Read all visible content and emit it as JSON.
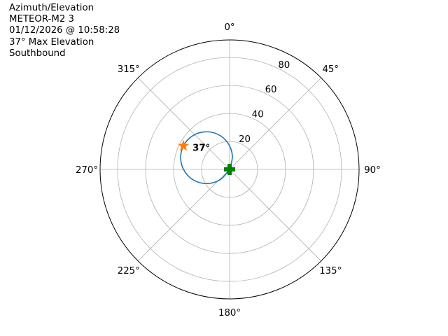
{
  "chart_data": {
    "type": "line",
    "projection": "polar",
    "theta_zero": "north",
    "theta_direction": "clockwise",
    "title_lines": [
      "Azimuth/Elevation",
      "METEOR-M2 3",
      "01/12/2026 @ 10:58:28",
      "37° Max Elevation",
      "Southbound"
    ],
    "theta_ticks": [
      "0°",
      "45°",
      "90°",
      "135°",
      "180°",
      "225°",
      "270°",
      "315°"
    ],
    "theta_tick_values": [
      0,
      45,
      90,
      135,
      180,
      225,
      270,
      315
    ],
    "r_ticks": [
      "20",
      "40",
      "60",
      "80"
    ],
    "r_tick_values": [
      20,
      40,
      60,
      80
    ],
    "rlim": [
      0,
      92.5
    ],
    "grid": true,
    "series": [
      {
        "color": "#1f77b4",
        "azimuth": [
          27,
          12,
          357,
          342,
          327,
          312,
          297,
          282,
          267,
          252,
          237,
          222,
          207
        ],
        "r": [
          0,
          9.6,
          18.5,
          26.2,
          32.0,
          35.7,
          37,
          35.7,
          32.0,
          26.2,
          18.5,
          9.6,
          0
        ]
      }
    ],
    "max_marker": {
      "azimuth": 297,
      "r": 37,
      "color": "#ff7f0e",
      "shape": "star",
      "label": "37°"
    },
    "position_marker": {
      "azimuth": 0,
      "r": 0,
      "color": "#008000",
      "shape": "plus"
    }
  }
}
